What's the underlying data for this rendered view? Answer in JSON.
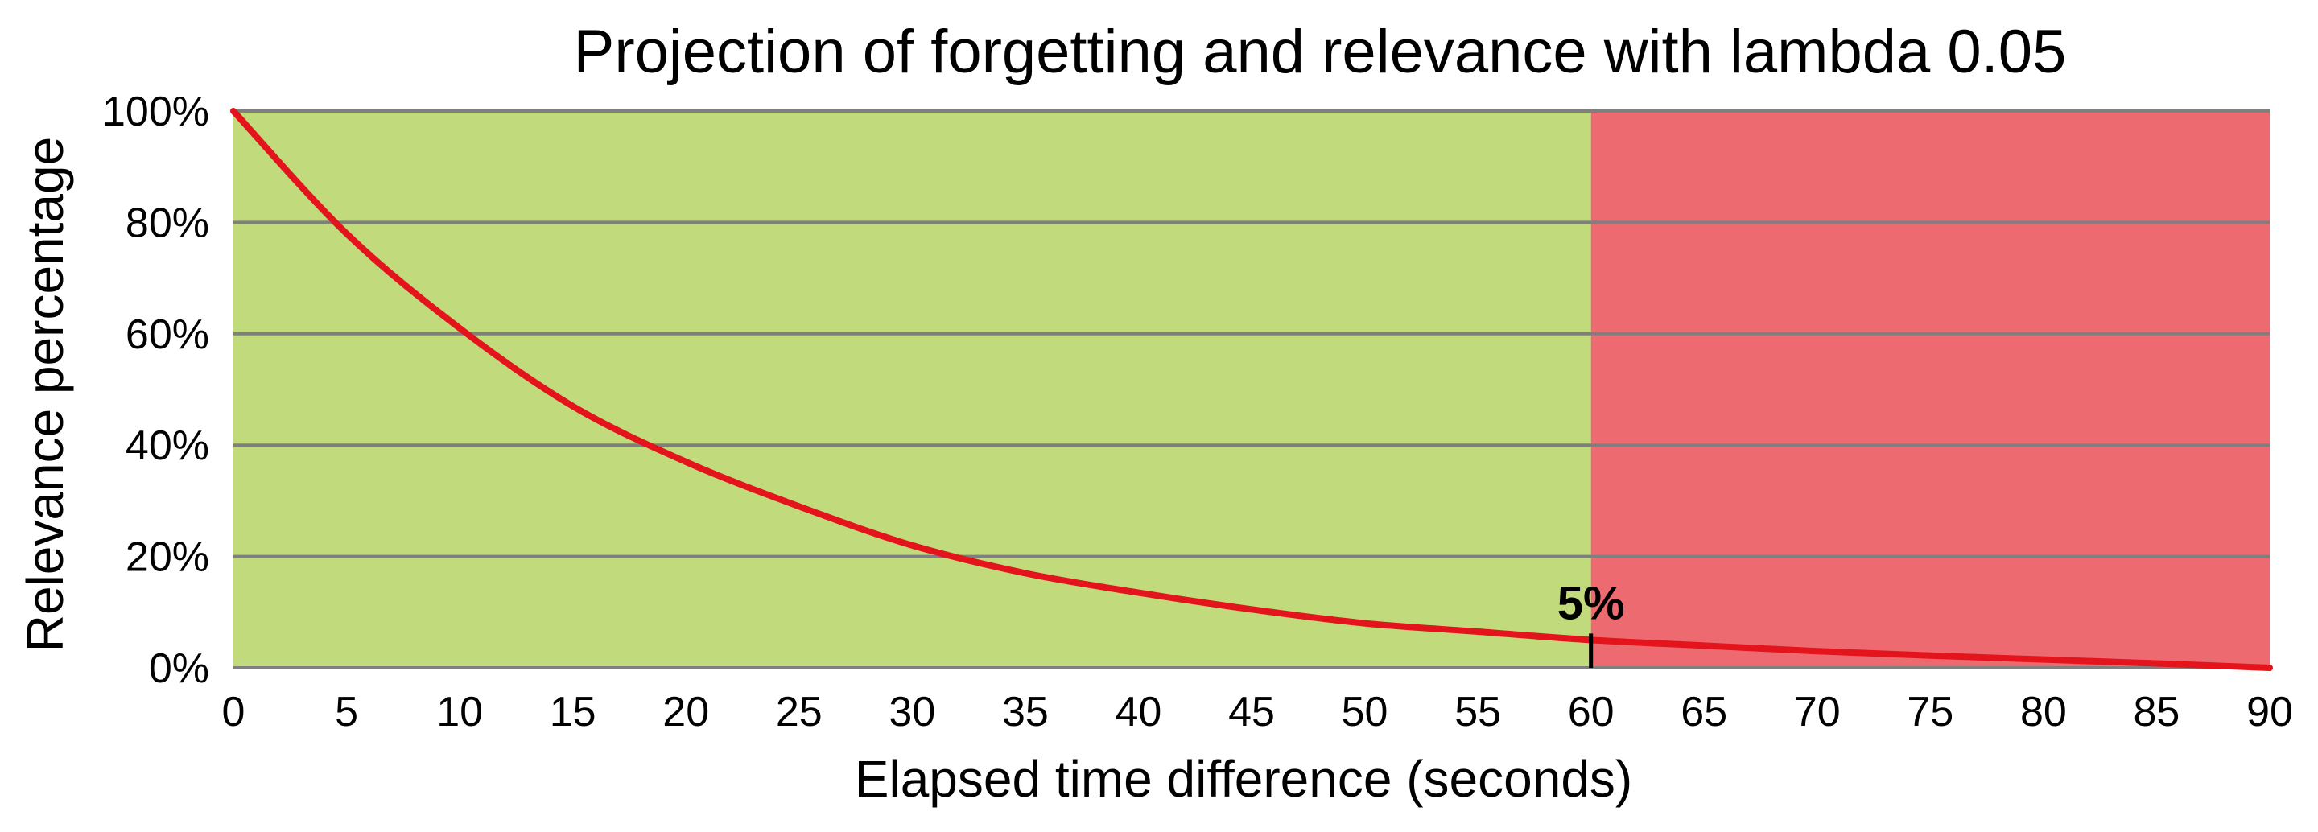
{
  "chart_data": {
    "type": "line",
    "title": "Projection of forgetting and relevance with lambda 0.05",
    "xlabel": "Elapsed time difference (seconds)",
    "ylabel": "Relevance percentage",
    "xlim": [
      0,
      90
    ],
    "ylim": [
      0,
      100
    ],
    "x_ticks": [
      0,
      5,
      10,
      15,
      20,
      25,
      30,
      35,
      40,
      45,
      50,
      55,
      60,
      65,
      70,
      75,
      80,
      85,
      90
    ],
    "x_tick_labels": [
      "0",
      "5",
      "10",
      "15",
      "20",
      "25",
      "30",
      "35",
      "40",
      "45",
      "50",
      "55",
      "60",
      "65",
      "70",
      "75",
      "80",
      "85",
      "90"
    ],
    "y_ticks": [
      0,
      20,
      40,
      60,
      80,
      100
    ],
    "y_tick_labels": [
      "0%",
      "20%",
      "40%",
      "60%",
      "80%",
      "100%"
    ],
    "grid": "horizontal",
    "regions": [
      {
        "x_start": 0,
        "x_end": 60,
        "color": "#c0da7c"
      },
      {
        "x_start": 60,
        "x_end": 90,
        "color": "#ed6a70"
      }
    ],
    "series": [
      {
        "color": "#e3141b",
        "x": [
          0,
          5,
          10,
          15,
          20,
          25,
          30,
          35,
          40,
          45,
          50,
          55,
          60,
          65,
          70,
          75,
          80,
          85,
          90
        ],
        "y": [
          100,
          78,
          61,
          47,
          37,
          29,
          22,
          17,
          13.5,
          10.5,
          8,
          6.5,
          5,
          4,
          3,
          2.2,
          1.5,
          0.8,
          0
        ]
      }
    ],
    "annotations": [
      {
        "text": "5%",
        "x": 60,
        "y": 5,
        "marker": "vertical-tick"
      }
    ]
  }
}
